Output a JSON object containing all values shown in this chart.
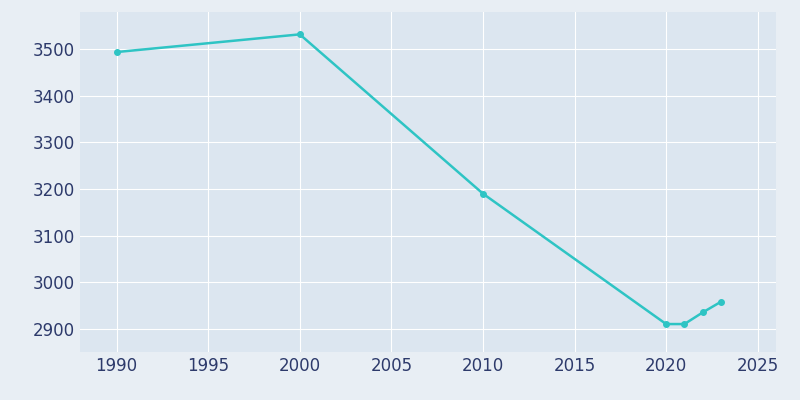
{
  "years": [
    1990,
    2000,
    2010,
    2020,
    2021,
    2022,
    2023
  ],
  "population": [
    3494,
    3532,
    3190,
    2910,
    2910,
    2935,
    2958
  ],
  "line_color": "#2EC4C4",
  "marker_color": "#2EC4C4",
  "background_color": "#E8EEF4",
  "plot_bg_color": "#DCE6F0",
  "grid_color": "#FFFFFF",
  "tick_color": "#2D3A6B",
  "xlim": [
    1988,
    2026
  ],
  "ylim": [
    2850,
    3580
  ],
  "xticks": [
    1990,
    1995,
    2000,
    2005,
    2010,
    2015,
    2020,
    2025
  ],
  "yticks": [
    2900,
    3000,
    3100,
    3200,
    3300,
    3400,
    3500
  ],
  "marker_size": 4,
  "line_width": 1.8,
  "tick_fontsize": 12
}
